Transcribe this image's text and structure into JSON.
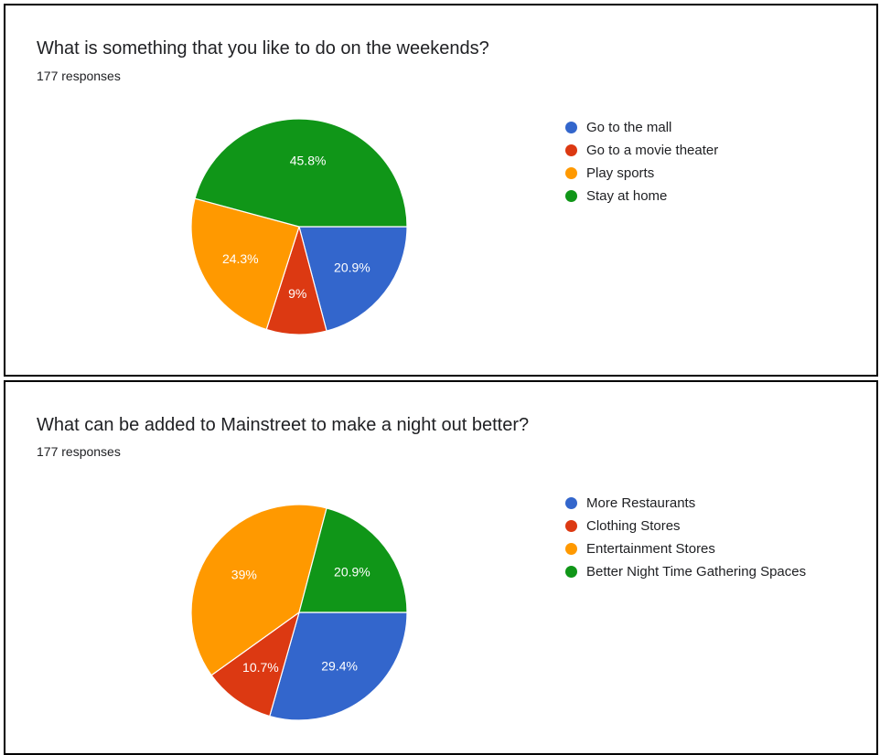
{
  "charts": [
    {
      "title": "What is something that you like to do on the weekends?",
      "subtitle": "177 responses"
    },
    {
      "title": "What can be added to Mainstreet to make a night out better?",
      "subtitle": "177 responses"
    }
  ],
  "chart_data": [
    {
      "type": "pie",
      "title": "What is something that you like to do on the weekends?",
      "subtitle": "177 responses",
      "legend_position": "right",
      "start": "3 o'clock, clockwise",
      "slices": [
        {
          "label": "Go to the mall",
          "value": 20.9,
          "display": "20.9%",
          "color": "#3366cc"
        },
        {
          "label": "Go to a movie theater",
          "value": 9,
          "display": "9%",
          "color": "#dc3912"
        },
        {
          "label": "Play sports",
          "value": 24.3,
          "display": "24.3%",
          "color": "#ff9900"
        },
        {
          "label": "Stay at home",
          "value": 45.8,
          "display": "45.8%",
          "color": "#109618"
        }
      ]
    },
    {
      "type": "pie",
      "title": "What can be added to Mainstreet to make a night out better?",
      "subtitle": "177 responses",
      "legend_position": "right",
      "start": "3 o'clock, clockwise",
      "slices": [
        {
          "label": "More Restaurants",
          "value": 29.4,
          "display": "29.4%",
          "color": "#3366cc"
        },
        {
          "label": "Clothing Stores",
          "value": 10.7,
          "display": "10.7%",
          "color": "#dc3912"
        },
        {
          "label": "Entertainment Stores",
          "value": 39,
          "display": "39%",
          "color": "#ff9900"
        },
        {
          "label": "Better Night Time Gathering Spaces",
          "value": 20.9,
          "display": "20.9%",
          "color": "#109618"
        }
      ]
    }
  ]
}
